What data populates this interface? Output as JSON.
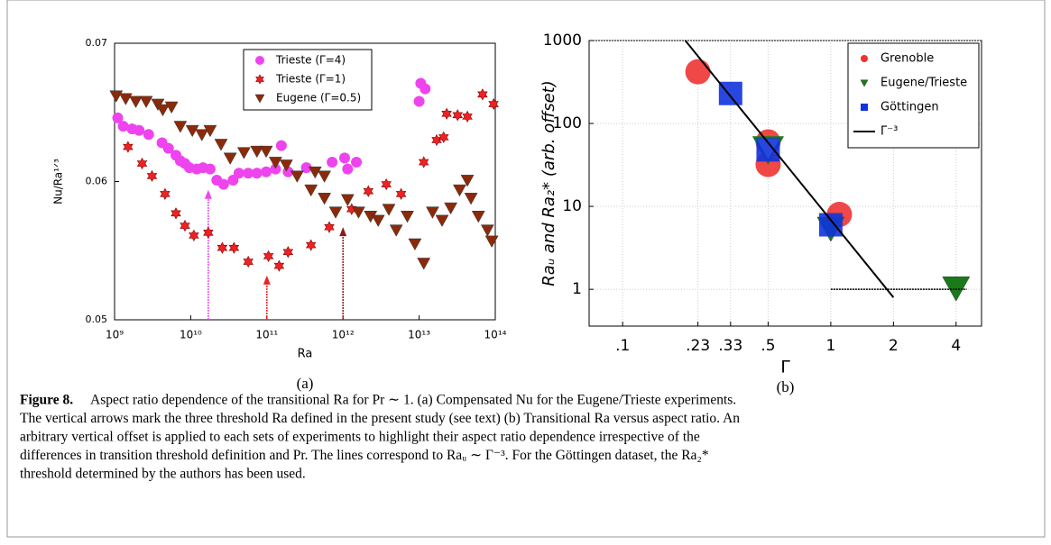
{
  "chart_data": [
    {
      "type": "scatter",
      "subcaption": "(a)",
      "xlabel": "Ra",
      "ylabel": "Nu/Ra¹ᐟ³",
      "xscale": "log",
      "xlim": [
        1000000000.0,
        100000000000000.0
      ],
      "ylim": [
        0.05,
        0.07
      ],
      "xticks": [
        {
          "value": 1000000000.0,
          "label": "10⁹"
        },
        {
          "value": 10000000000.0,
          "label": "10¹⁰"
        },
        {
          "value": 100000000000.0,
          "label": "10¹¹"
        },
        {
          "value": 1000000000000.0,
          "label": "10¹²"
        },
        {
          "value": 10000000000000.0,
          "label": "10¹³"
        },
        {
          "value": 100000000000000.0,
          "label": "10¹⁴"
        }
      ],
      "yticks": [
        0.05,
        0.06,
        0.07
      ],
      "grid": false,
      "legend": "upper center",
      "series": [
        {
          "name": "Trieste  (Γ=4)",
          "color": "#ee44ee",
          "marker": "circle",
          "marker_size": 6,
          "x": [
            1100000000.0,
            1300000000.0,
            1700000000.0,
            2100000000.0,
            2800000000.0,
            4200000000.0,
            5100000000.0,
            6400000000.0,
            7300000000.0,
            8400000000.0,
            9600000000.0,
            12000000000.0,
            14500000000.0,
            18000000000.0,
            22000000000.0,
            27000000000.0,
            36000000000.0,
            43000000000.0,
            57000000000.0,
            74000000000.0,
            98000000000.0,
            130000000000.0,
            155000000000.0,
            190000000000.0,
            330000000000.0,
            720000000000.0,
            1050000000000.0,
            1150000000000.0,
            1500000000000.0,
            10500000000000.0,
            12000000000000.0,
            10000000000000.0
          ],
          "values": [
            0.0646,
            0.064,
            0.0638,
            0.0637,
            0.0634,
            0.0628,
            0.0624,
            0.0619,
            0.0615,
            0.0613,
            0.061,
            0.0609,
            0.061,
            0.0609,
            0.0601,
            0.0598,
            0.0601,
            0.0606,
            0.0606,
            0.0606,
            0.0607,
            0.0609,
            0.0626,
            0.0607,
            0.061,
            0.0614,
            0.0617,
            0.0609,
            0.0614,
            0.0671,
            0.0667,
            0.0658
          ]
        },
        {
          "name": "Trieste  (Γ=1)",
          "color": "#ee2222",
          "marker": "star",
          "marker_size": 6,
          "x": [
            1500000000.0,
            2300000000.0,
            3100000000.0,
            4600000000.0,
            6400000000.0,
            8400000000.0,
            11000000000.0,
            17000000000.0,
            26000000000.0,
            37000000000.0,
            57000000000.0,
            105000000000.0,
            145000000000.0,
            190000000000.0,
            380000000000.0,
            660000000000.0,
            1300000000000.0,
            2150000000000.0,
            3700000000000.0,
            5800000000000.0,
            11500000000000.0,
            17000000000000.0,
            21000000000000.0,
            23000000000000.0,
            32000000000000.0,
            43000000000000.0,
            68000000000000.0,
            95000000000000.0
          ],
          "values": [
            0.0625,
            0.0613,
            0.0604,
            0.0591,
            0.0577,
            0.0568,
            0.0561,
            0.0563,
            0.0552,
            0.0552,
            0.0542,
            0.0546,
            0.0539,
            0.0549,
            0.0554,
            0.0567,
            0.058,
            0.0593,
            0.0598,
            0.0591,
            0.0614,
            0.063,
            0.0632,
            0.0649,
            0.0648,
            0.0647,
            0.0663,
            0.0656
          ]
        },
        {
          "name": "Eugene (Γ=0.5)",
          "color": "#8b2a0a",
          "marker": "triangle-down",
          "marker_size": 7,
          "x": [
            1050000000.0,
            1400000000.0,
            1900000000.0,
            2600000000.0,
            3700000000.0,
            4300000000.0,
            5600000000.0,
            7300000000.0,
            10500000000.0,
            14000000000.0,
            18000000000.0,
            25000000000.0,
            33000000000.0,
            50000000000.0,
            74000000000.0,
            98000000000.0,
            130000000000.0,
            180000000000.0,
            250000000000.0,
            380000000000.0,
            570000000000.0,
            800000000000.0,
            1150000000000.0,
            1600000000000.0,
            2300000000000.0,
            2900000000000.0,
            4000000000000.0,
            5000000000000.0,
            7000000000000.0,
            8800000000000.0,
            11500000000000.0,
            15000000000000.0,
            20000000000000.0,
            26000000000000.0,
            34000000000000.0,
            43000000000000.0,
            48000000000000.0,
            60000000000000.0,
            79000000000000.0,
            90000000000000.0,
            430000000000.0,
            570000000000.0
          ],
          "values": [
            0.0662,
            0.066,
            0.0658,
            0.0658,
            0.0656,
            0.0652,
            0.0654,
            0.064,
            0.0637,
            0.0634,
            0.0637,
            0.0627,
            0.0617,
            0.0621,
            0.0622,
            0.0622,
            0.0614,
            0.0612,
            0.0604,
            0.0594,
            0.0588,
            0.0578,
            0.0587,
            0.0578,
            0.0575,
            0.0572,
            0.058,
            0.0565,
            0.0575,
            0.0555,
            0.0541,
            0.0578,
            0.0572,
            0.0581,
            0.0594,
            0.0601,
            0.0588,
            0.0575,
            0.0565,
            0.0557,
            0.0607,
            0.0604
          ]
        }
      ],
      "arrows": [
        {
          "x": 17000000000.0,
          "y": 0.0594,
          "color": "#ee44ee"
        },
        {
          "x": 100000000000.0,
          "y": 0.0532,
          "color": "#ee2222"
        },
        {
          "x": 1000000000000.0,
          "y": 0.0567,
          "color": "#8b1a1a"
        }
      ]
    },
    {
      "type": "scatter",
      "subcaption": "(b)",
      "xlabel": "Γ",
      "ylabel": "Raᵤ and Ra₂* (arb. offset)",
      "xscale": "log",
      "yscale": "log",
      "xlim": [
        0.069,
        5.3
      ],
      "ylim": [
        0.36,
        1000
      ],
      "xticks": [
        {
          "value": 0.1,
          "label": ".1"
        },
        {
          "value": 0.23,
          "label": ".23"
        },
        {
          "value": 0.33,
          "label": ".33"
        },
        {
          "value": 0.5,
          "label": ".5"
        },
        1,
        2,
        4
      ],
      "yticks": [
        1,
        10,
        100,
        1000
      ],
      "grid": true,
      "legend": "upper right",
      "series": [
        {
          "name": "Grenoble",
          "color": "#ee3333",
          "marker": "circle",
          "marker_size": 14,
          "x": [
            0.23,
            0.5,
            0.5,
            1.1
          ],
          "values": [
            420,
            60,
            32,
            8
          ]
        },
        {
          "name": "Eugene/Trieste",
          "color": "#1a7a1a",
          "marker": "triangle-down",
          "marker_size": 15,
          "x": [
            0.5,
            1,
            4
          ],
          "values": [
            50,
            5.5,
            1.05
          ]
        },
        {
          "name": "Göttingen",
          "color": "#1133dd",
          "marker": "square",
          "marker_size": 13,
          "x": [
            0.33,
            0.5,
            1
          ],
          "values": [
            230,
            48,
            6
          ]
        },
        {
          "name": "Γ⁻³",
          "color": "#000000",
          "marker": "line",
          "x": [
            0.2,
            2
          ],
          "values": [
            1000,
            0.8
          ]
        },
        {
          "color": "#000000",
          "marker": "dotted",
          "x": [
            1,
            4.5
          ],
          "values": [
            1,
            1
          ]
        }
      ]
    }
  ],
  "caption": {
    "label": "Figure 8.",
    "lines": [
      "Aspect ratio dependence of the transitional Ra for Pr ∼ 1. (a) Compensated Nu for the Eugene/Trieste experiments.",
      "The vertical arrows mark the three threshold Ra defined in the present study (see text) (b) Transitional Ra versus aspect ratio. An",
      "arbitrary vertical offset is applied to each sets of experiments to highlight their aspect ratio dependence irrespective of the",
      "differences in transition threshold definition and Pr. The lines correspond to Raᵤ ∼ Γ⁻³. For the Göttingen dataset, the Ra₂* ",
      "threshold determined by the authors has been used."
    ]
  }
}
